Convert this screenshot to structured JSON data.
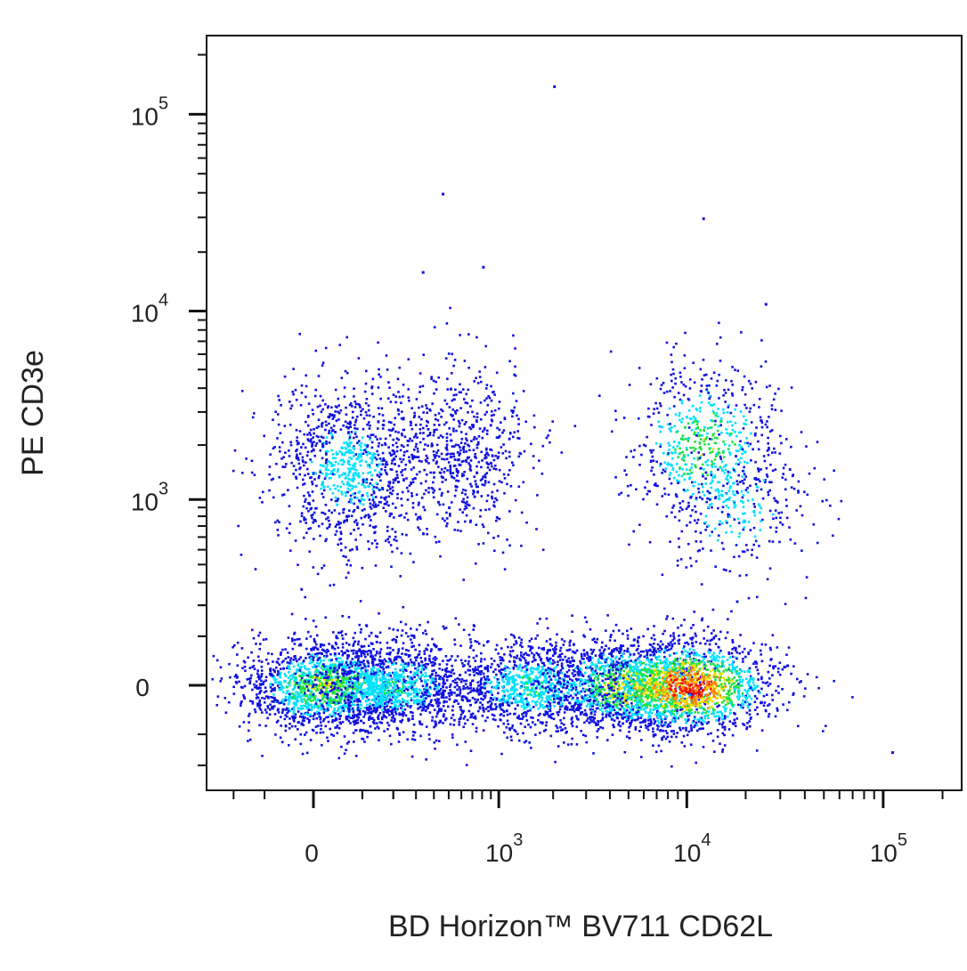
{
  "chart_data": {
    "type": "scatter",
    "plot_style": "flow cytometry pseudocolor density dot plot",
    "xlabel": "BD Horizon™ BV711 CD62L",
    "ylabel": "PE CD3e",
    "x_scale": "biexponential",
    "y_scale": "biexponential",
    "xlim": [
      -300,
      250000
    ],
    "ylim": [
      -300,
      250000
    ],
    "x_ticks": [
      {
        "value": 0,
        "base": "0",
        "exp": ""
      },
      {
        "value": 1000,
        "base": "10",
        "exp": "3"
      },
      {
        "value": 10000,
        "base": "10",
        "exp": "4"
      },
      {
        "value": 100000,
        "base": "10",
        "exp": "5"
      }
    ],
    "y_ticks": [
      {
        "value": 0,
        "base": "0",
        "exp": ""
      },
      {
        "value": 1000,
        "base": "10",
        "exp": "3"
      },
      {
        "value": 10000,
        "base": "10",
        "exp": "4"
      },
      {
        "value": 100000,
        "base": "10",
        "exp": "5"
      }
    ],
    "grid": false,
    "legend": "none",
    "density_colormap": [
      "#1010e0",
      "#00e0ff",
      "#20e040",
      "#f0e000",
      "#ff8000",
      "#ff0000"
    ],
    "populations": [
      {
        "x": 20,
        "y": 0,
        "relative_count": 0.17,
        "peak_density": 0.55
      },
      {
        "x": 200,
        "y": 0,
        "relative_count": 0.13,
        "peak_density": 0.35
      },
      {
        "x": 1500,
        "y": 0,
        "relative_count": 0.12,
        "peak_density": 0.35
      },
      {
        "x": 5000,
        "y": 0,
        "relative_count": 0.14,
        "peak_density": 0.65
      },
      {
        "x": 10000,
        "y": 0,
        "relative_count": 0.17,
        "peak_density": 1.0
      },
      {
        "x": 60,
        "y": 1500,
        "relative_count": 0.11,
        "peak_density": 0.3
      },
      {
        "x": 600,
        "y": 1800,
        "relative_count": 0.07,
        "peak_density": 0.12
      },
      {
        "x": 12000,
        "y": 2000,
        "relative_count": 0.07,
        "peak_density": 0.5
      },
      {
        "x": 18000,
        "y": 900,
        "relative_count": 0.03,
        "peak_density": 0.3
      }
    ],
    "outliers": [
      {
        "x": 2000,
        "y": 140000
      },
      {
        "x": 450,
        "y": 40000
      },
      {
        "x": 330,
        "y": 16000
      },
      {
        "x": 800,
        "y": 17000
      },
      {
        "x": 12000,
        "y": 30000
      },
      {
        "x": 25000,
        "y": 11000
      },
      {
        "x": 110000,
        "y": -150
      }
    ]
  }
}
